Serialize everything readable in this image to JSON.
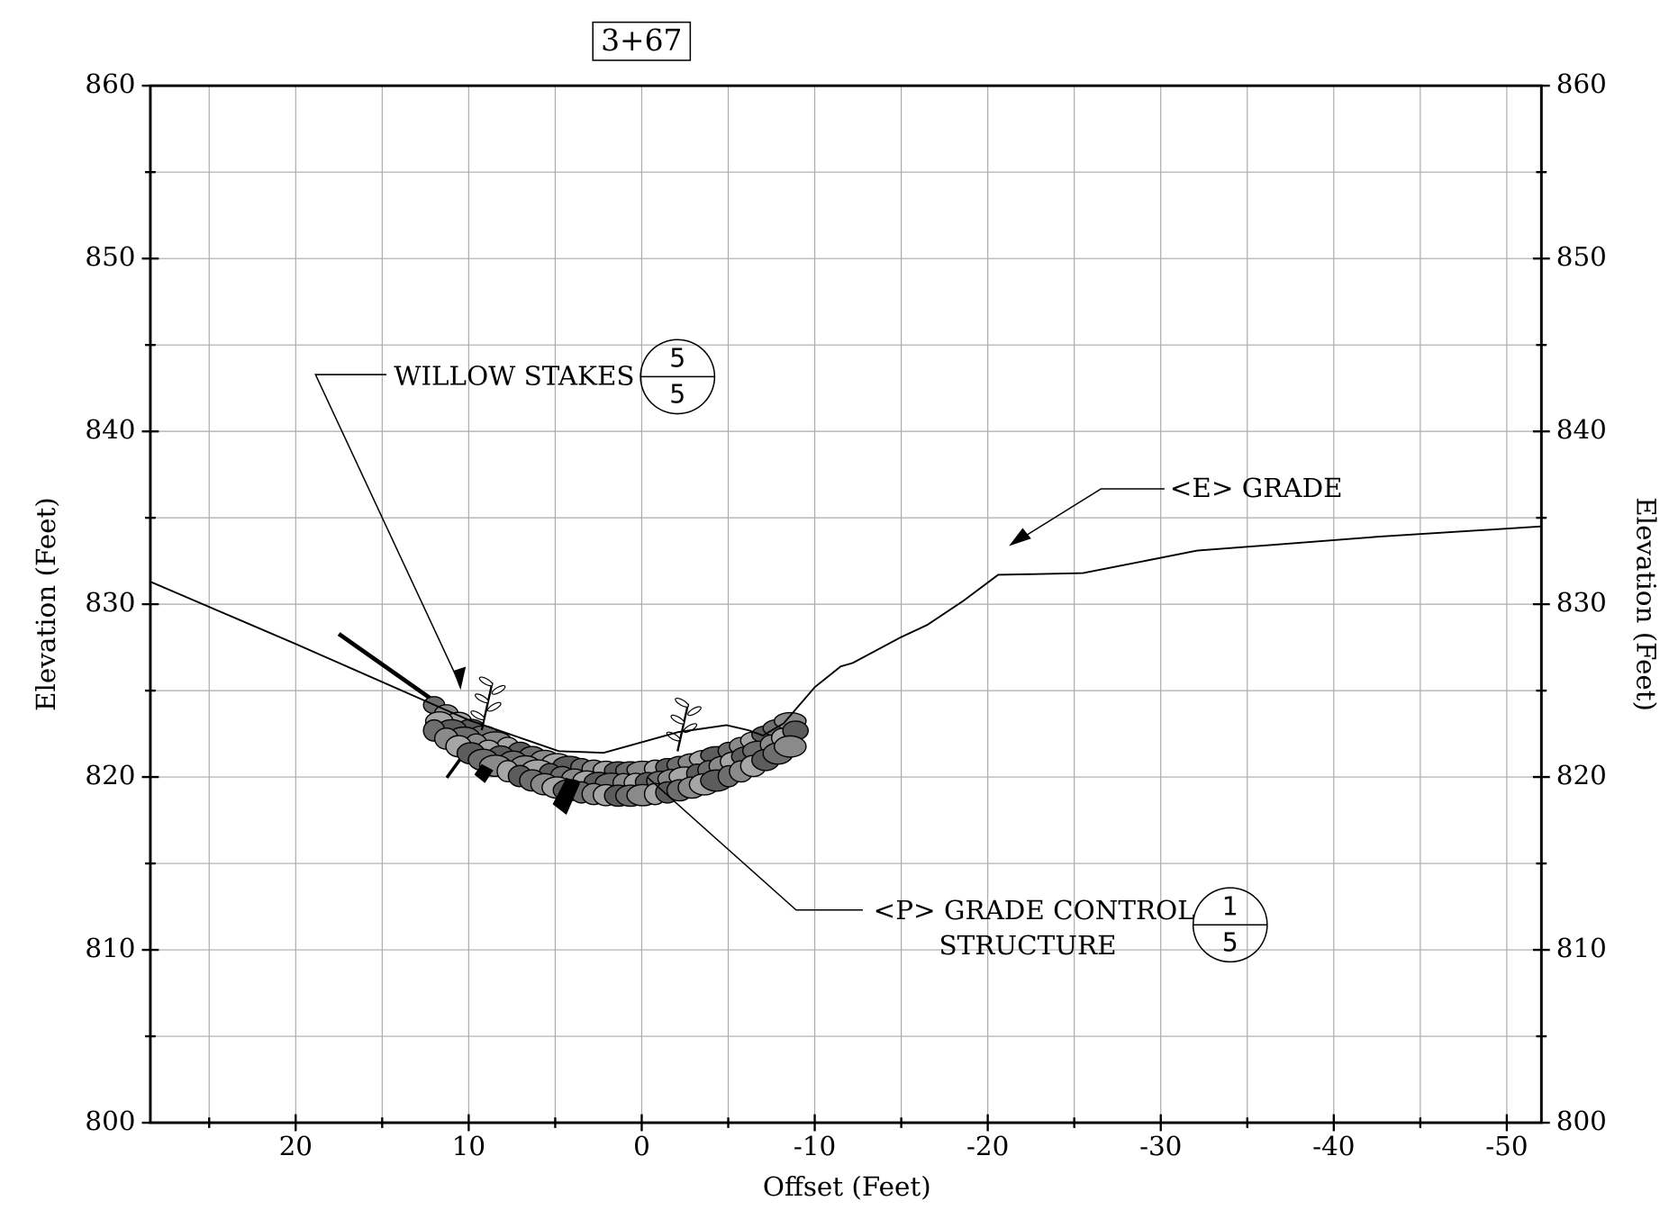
{
  "chart_data": {
    "type": "line",
    "title": "3+67",
    "xlabel": "Offset (Feet)",
    "ylabel": "Elevation (Feet)",
    "y2label": "Elevation (Feet)",
    "x": [
      28.4,
      20,
      10,
      4.8,
      2.2,
      -2.1,
      -4.9,
      -6.2,
      -7,
      -8.2,
      -10,
      -11.5,
      -12.2,
      -15,
      -16.5,
      -18.6,
      -20.6,
      -25.5,
      -32.1,
      -42.5,
      -52
    ],
    "series": [
      {
        "name": "<E> GRADE",
        "color": "#000000",
        "values": [
          831.3,
          827.7,
          823.3,
          821.5,
          821.4,
          822.6,
          823.0,
          822.7,
          822.4,
          823.1,
          825.2,
          826.4,
          826.6,
          828.1,
          828.8,
          830.2,
          831.7,
          831.8,
          833.1,
          833.9,
          834.5
        ]
      }
    ],
    "xlim": [
      28.4,
      -52
    ],
    "ylim": [
      800,
      860
    ],
    "xticks": [
      20,
      10,
      0,
      -10,
      -20,
      -30,
      -40,
      -50
    ],
    "yticks": [
      800,
      810,
      820,
      830,
      840,
      850,
      860
    ],
    "xgrid_minor": [
      25,
      15,
      5,
      -5,
      -15,
      -25,
      -35,
      -45
    ],
    "ygrid_minor": [
      805,
      815,
      825,
      835,
      845,
      855
    ],
    "grid": true,
    "annotations": [
      {
        "text": "WILLOW STAKES",
        "detail": "5",
        "sheet": "5"
      },
      {
        "text": "<E> GRADE"
      },
      {
        "text": "<P> GRADE CONTROL",
        "text2": "STRUCTURE",
        "detail": "1",
        "sheet": "5"
      }
    ]
  }
}
